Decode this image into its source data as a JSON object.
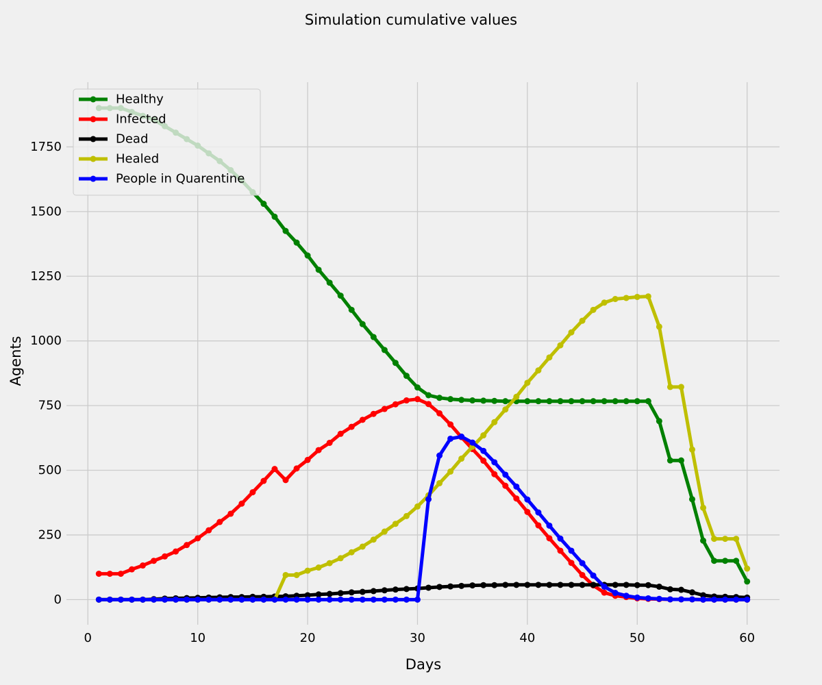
{
  "chart_data": {
    "type": "line",
    "title": "Simulation cumulative values",
    "xlabel": "Days",
    "ylabel": "Agents",
    "xlim": [
      -1.95,
      62.95
    ],
    "ylim": [
      -97,
      2000
    ],
    "xticks": [
      0,
      10,
      20,
      30,
      40,
      50,
      60
    ],
    "yticks": [
      0,
      250,
      500,
      750,
      1000,
      1250,
      1500,
      1750
    ],
    "grid": true,
    "legend_position": "top-left",
    "x": [
      1,
      2,
      3,
      4,
      5,
      6,
      7,
      8,
      9,
      10,
      11,
      12,
      13,
      14,
      15,
      16,
      17,
      18,
      19,
      20,
      21,
      22,
      23,
      24,
      25,
      26,
      27,
      28,
      29,
      30,
      31,
      32,
      33,
      34,
      35,
      36,
      37,
      38,
      39,
      40,
      41,
      42,
      43,
      44,
      45,
      46,
      47,
      48,
      49,
      50,
      51,
      52,
      53,
      54,
      55,
      56,
      57,
      58,
      59,
      60
    ],
    "series": [
      {
        "name": "Healthy",
        "color": "#008000",
        "values": [
          1900,
          1900,
          1900,
          1885,
          1870,
          1855,
          1830,
          1805,
          1780,
          1755,
          1725,
          1695,
          1660,
          1620,
          1575,
          1530,
          1480,
          1425,
          1380,
          1330,
          1275,
          1225,
          1175,
          1120,
          1065,
          1015,
          965,
          915,
          865,
          820,
          790,
          780,
          775,
          772,
          770,
          769,
          768,
          767,
          767,
          767,
          767,
          767,
          767,
          767,
          767,
          767,
          767,
          767,
          767,
          767,
          767,
          690,
          538,
          538,
          388,
          228,
          150,
          150,
          150,
          70
        ]
      },
      {
        "name": "Infected",
        "color": "#ff0000",
        "values": [
          100,
          100,
          100,
          117,
          132,
          150,
          167,
          186,
          211,
          237,
          268,
          300,
          332,
          371,
          415,
          459,
          505,
          462,
          507,
          540,
          578,
          606,
          641,
          668,
          695,
          718,
          737,
          755,
          770,
          775,
          756,
          720,
          677,
          628,
          582,
          537,
          485,
          440,
          391,
          339,
          287,
          237,
          189,
          142,
          95,
          55,
          27,
          15,
          10,
          5,
          3,
          2,
          1,
          1,
          1,
          0,
          0,
          0,
          0,
          0
        ]
      },
      {
        "name": "Dead",
        "color": "#000000",
        "values": [
          0,
          0,
          0,
          0,
          0,
          2,
          4,
          5,
          6,
          7,
          8,
          9,
          10,
          10,
          11,
          11,
          12,
          13,
          15,
          17,
          20,
          22,
          25,
          28,
          30,
          33,
          36,
          39,
          41,
          43,
          46,
          49,
          51,
          53,
          55,
          56,
          56,
          57,
          57,
          57,
          57,
          57,
          57,
          57,
          57,
          57,
          57,
          57,
          57,
          56,
          56,
          50,
          40,
          38,
          28,
          17,
          12,
          11,
          10,
          8
        ]
      },
      {
        "name": "Healed",
        "color": "#bfbf00",
        "values": [
          0,
          0,
          0,
          0,
          0,
          0,
          0,
          0,
          0,
          0,
          0,
          0,
          0,
          0,
          0,
          0,
          0,
          95,
          95,
          112,
          124,
          141,
          160,
          183,
          205,
          232,
          263,
          293,
          323,
          360,
          403,
          450,
          495,
          545,
          591,
          635,
          686,
          735,
          784,
          838,
          886,
          936,
          983,
          1033,
          1078,
          1120,
          1148,
          1162,
          1166,
          1170,
          1172,
          1055,
          822,
          822,
          580,
          355,
          235,
          235,
          235,
          120
        ]
      },
      {
        "name": "People in Quarentine",
        "color": "#0000ff",
        "values": [
          0,
          0,
          0,
          0,
          0,
          0,
          0,
          0,
          0,
          0,
          0,
          0,
          0,
          0,
          0,
          0,
          0,
          0,
          0,
          0,
          0,
          0,
          0,
          0,
          0,
          0,
          0,
          0,
          0,
          0,
          388,
          557,
          622,
          630,
          607,
          575,
          531,
          483,
          437,
          387,
          337,
          286,
          236,
          189,
          141,
          93,
          50,
          26,
          15,
          8,
          5,
          3,
          1,
          1,
          1,
          0,
          0,
          0,
          0,
          0
        ]
      }
    ]
  }
}
